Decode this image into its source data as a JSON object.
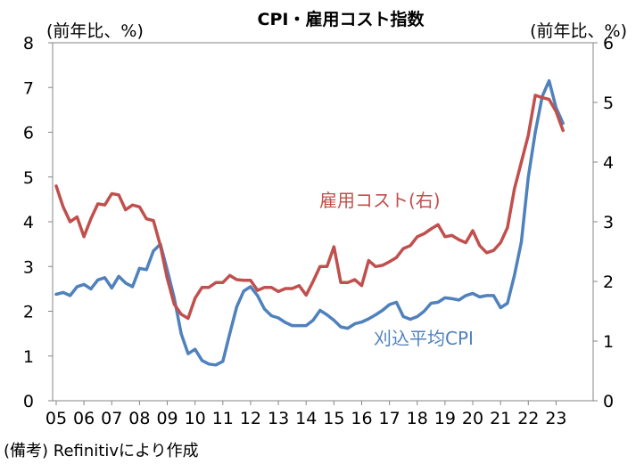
{
  "chart_data": {
    "type": "line",
    "title": "CPI・雇用コスト指数",
    "left_unit": "(前年比、%)",
    "right_unit": "(前年比、%)",
    "source": "(備考) Refinitivにより作成",
    "x_ticks": [
      "05",
      "06",
      "07",
      "08",
      "09",
      "10",
      "11",
      "12",
      "13",
      "14",
      "15",
      "16",
      "17",
      "18",
      "19",
      "20",
      "21",
      "22",
      "23"
    ],
    "x_range": [
      2005.0,
      2023.5
    ],
    "left_axis": {
      "min": 0,
      "max": 8,
      "ticks": [
        0,
        1,
        2,
        3,
        4,
        5,
        6,
        7,
        8
      ]
    },
    "right_axis": {
      "min": 0,
      "max": 6,
      "ticks": [
        0,
        1,
        2,
        3,
        4,
        5,
        6
      ]
    },
    "series": [
      {
        "name": "刈込平均CPI",
        "axis": "left",
        "color": "#4f81bd",
        "x": [
          2005.0,
          2005.25,
          2005.5,
          2005.75,
          2006.0,
          2006.25,
          2006.5,
          2006.75,
          2007.0,
          2007.25,
          2007.5,
          2007.75,
          2008.0,
          2008.25,
          2008.5,
          2008.75,
          2009.0,
          2009.25,
          2009.5,
          2009.75,
          2010.0,
          2010.25,
          2010.5,
          2010.75,
          2011.0,
          2011.25,
          2011.5,
          2011.75,
          2012.0,
          2012.25,
          2012.5,
          2012.75,
          2013.0,
          2013.25,
          2013.5,
          2013.75,
          2014.0,
          2014.25,
          2014.5,
          2014.75,
          2015.0,
          2015.25,
          2015.5,
          2015.75,
          2016.0,
          2016.25,
          2016.5,
          2016.75,
          2017.0,
          2017.25,
          2017.5,
          2017.75,
          2018.0,
          2018.25,
          2018.5,
          2018.75,
          2019.0,
          2019.25,
          2019.5,
          2019.75,
          2020.0,
          2020.25,
          2020.5,
          2020.75,
          2021.0,
          2021.25,
          2021.5,
          2021.75,
          2022.0,
          2022.25,
          2022.5,
          2022.75,
          2023.0,
          2023.25
        ],
        "values": [
          2.38,
          2.42,
          2.35,
          2.55,
          2.6,
          2.5,
          2.7,
          2.75,
          2.52,
          2.78,
          2.63,
          2.55,
          2.96,
          2.93,
          3.35,
          3.5,
          2.92,
          2.3,
          1.5,
          1.05,
          1.15,
          0.9,
          0.82,
          0.8,
          0.88,
          1.5,
          2.1,
          2.45,
          2.55,
          2.35,
          2.05,
          1.9,
          1.85,
          1.75,
          1.68,
          1.68,
          1.68,
          1.8,
          2.02,
          1.92,
          1.8,
          1.65,
          1.62,
          1.72,
          1.76,
          1.83,
          1.92,
          2.02,
          2.15,
          2.2,
          1.88,
          1.82,
          1.88,
          2.0,
          2.18,
          2.2,
          2.3,
          2.28,
          2.25,
          2.35,
          2.4,
          2.32,
          2.35,
          2.35,
          2.08,
          2.18,
          2.8,
          3.55,
          5.0,
          6.0,
          6.8,
          7.15,
          6.55,
          6.2
        ]
      },
      {
        "name": "雇用コスト(右)",
        "axis": "right",
        "color": "#c0504d",
        "x": [
          2005.0,
          2005.25,
          2005.5,
          2005.75,
          2006.0,
          2006.25,
          2006.5,
          2006.75,
          2007.0,
          2007.25,
          2007.5,
          2007.75,
          2008.0,
          2008.25,
          2008.5,
          2008.75,
          2009.0,
          2009.25,
          2009.5,
          2009.75,
          2010.0,
          2010.25,
          2010.5,
          2010.75,
          2011.0,
          2011.25,
          2011.5,
          2011.75,
          2012.0,
          2012.25,
          2012.5,
          2012.75,
          2013.0,
          2013.25,
          2013.5,
          2013.75,
          2014.0,
          2014.25,
          2014.5,
          2014.75,
          2015.0,
          2015.25,
          2015.5,
          2015.75,
          2016.0,
          2016.25,
          2016.5,
          2016.75,
          2017.0,
          2017.25,
          2017.5,
          2017.75,
          2018.0,
          2018.25,
          2018.5,
          2018.75,
          2019.0,
          2019.25,
          2019.5,
          2019.75,
          2020.0,
          2020.25,
          2020.5,
          2020.75,
          2021.0,
          2021.25,
          2021.5,
          2021.75,
          2022.0,
          2022.25,
          2022.5,
          2022.75,
          2023.0,
          2023.25
        ],
        "values": [
          3.6,
          3.25,
          3.0,
          3.08,
          2.75,
          3.05,
          3.3,
          3.28,
          3.47,
          3.45,
          3.2,
          3.28,
          3.25,
          3.05,
          3.02,
          2.6,
          2.05,
          1.62,
          1.45,
          1.38,
          1.72,
          1.9,
          1.9,
          1.98,
          1.98,
          2.1,
          2.03,
          2.02,
          2.02,
          1.85,
          1.9,
          1.9,
          1.83,
          1.88,
          1.88,
          1.93,
          1.77,
          2.0,
          2.25,
          2.25,
          2.58,
          1.98,
          1.98,
          2.03,
          1.93,
          2.35,
          2.25,
          2.27,
          2.33,
          2.4,
          2.55,
          2.6,
          2.75,
          2.8,
          2.88,
          2.95,
          2.75,
          2.77,
          2.7,
          2.65,
          2.85,
          2.6,
          2.48,
          2.52,
          2.65,
          2.9,
          3.55,
          4.0,
          4.45,
          5.12,
          5.08,
          5.05,
          4.85,
          4.53
        ]
      }
    ],
    "annotations": [
      {
        "text": "雇用コスト(右)",
        "series": "雇用コスト(右)"
      },
      {
        "text": "刈込平均CPI",
        "series": "刈込平均CPI"
      }
    ]
  }
}
